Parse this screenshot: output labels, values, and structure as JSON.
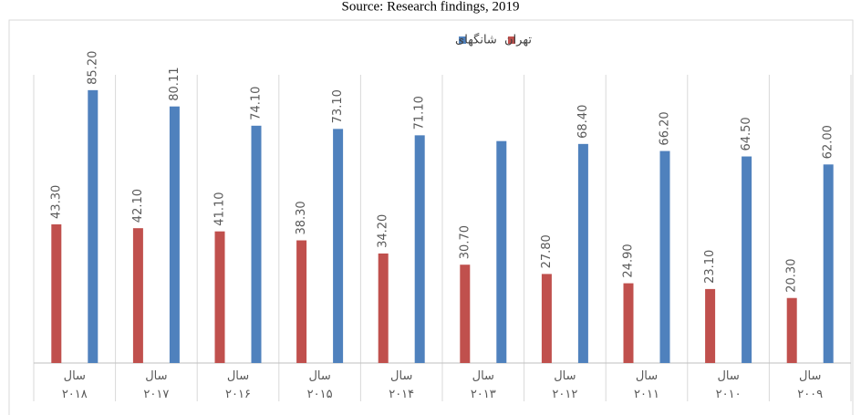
{
  "chart_data": {
    "type": "bar",
    "title": "Source: Research findings, 2019",
    "categories": [
      "سال ۲۰۱۸",
      "سال ۲۰۱۷",
      "سال ۲۰۱۶",
      "سال ۲۰۱۵",
      "سال ۲۰۱۴",
      "سال ۲۰۱۳",
      "سال ۲۰۱۲",
      "سال ۲۰۱۱",
      "سال ۲۰۱۰",
      "سال ۲۰۰۹"
    ],
    "series": [
      {
        "name": "تهران",
        "color": "#c0504d",
        "values": [
          43.3,
          42.1,
          41.1,
          38.3,
          34.2,
          30.7,
          27.8,
          24.9,
          23.1,
          20.3
        ],
        "value_labels": [
          "43.30",
          "42.10",
          "41.10",
          "38.30",
          "34.20",
          "30.70",
          "27.80",
          "24.90",
          "23.10",
          "20.30"
        ]
      },
      {
        "name": "شانگهای",
        "color": "#4f81bd",
        "values": [
          85.2,
          80.11,
          74.1,
          73.1,
          71.1,
          69.3,
          68.4,
          66.2,
          64.5,
          62.0
        ],
        "value_labels": [
          "85.20",
          "80.11",
          "74.10",
          "73.10",
          "71.10",
          null,
          "68.40",
          "66.20",
          "64.50",
          "62.00"
        ]
      }
    ],
    "ylim": [
      0,
      90
    ],
    "legend": "top"
  }
}
